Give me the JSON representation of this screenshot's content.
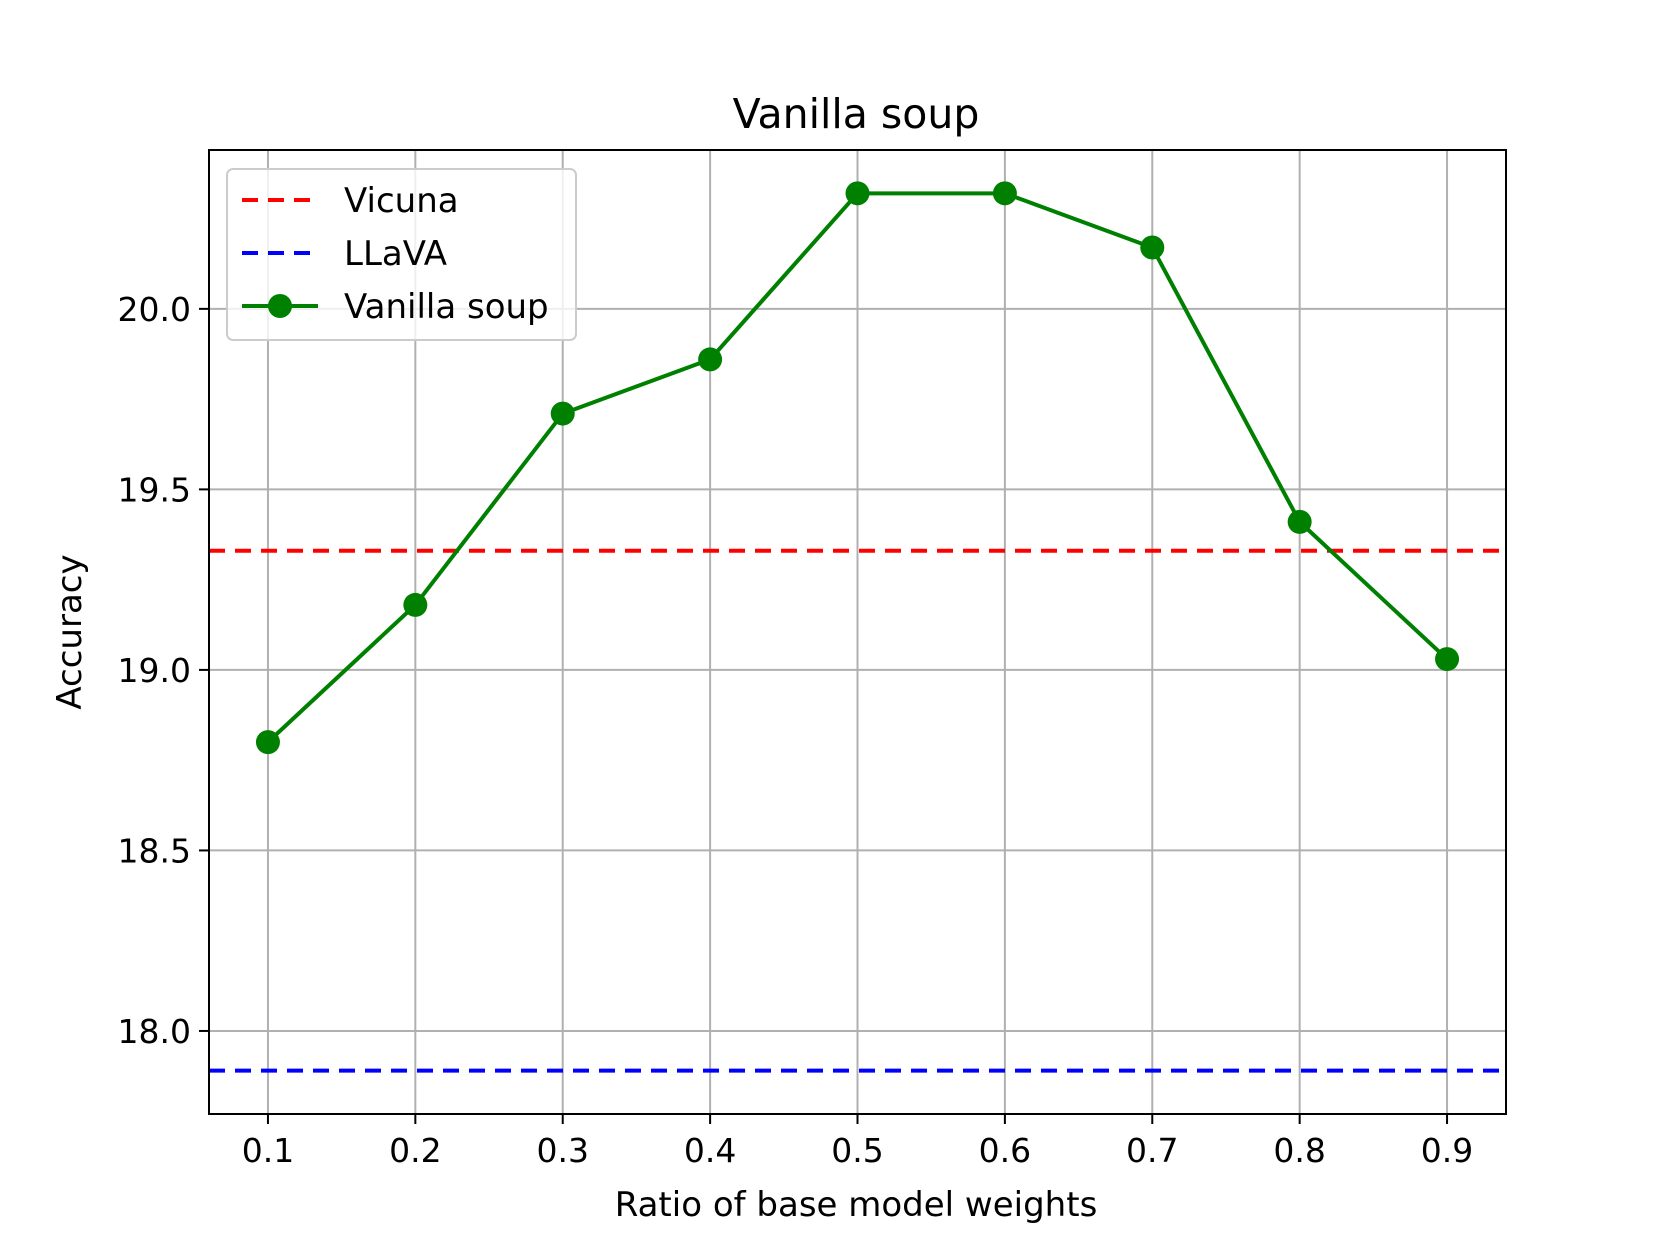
{
  "chart_data": {
    "type": "line",
    "title": "Vanilla soup",
    "xlabel": "Ratio of base model weights",
    "ylabel": "Accuracy",
    "x": [
      0.1,
      0.2,
      0.3,
      0.4,
      0.5,
      0.6,
      0.7,
      0.8,
      0.9
    ],
    "x_ticks": [
      "0.1",
      "0.2",
      "0.3",
      "0.4",
      "0.5",
      "0.6",
      "0.7",
      "0.8",
      "0.9"
    ],
    "y_ticks": [
      "18.0",
      "18.5",
      "19.0",
      "19.5",
      "20.0"
    ],
    "xlim": [
      0.06,
      0.94
    ],
    "ylim": [
      17.77,
      20.44
    ],
    "grid": true,
    "legend_position": "top-left",
    "series": [
      {
        "name": "Vanilla soup",
        "values": [
          18.8,
          19.18,
          19.71,
          19.86,
          20.32,
          20.32,
          20.17,
          19.41,
          19.03
        ],
        "color": "#008000",
        "style": "solid",
        "marker": "circle"
      }
    ],
    "reference_lines": [
      {
        "name": "Vicuna",
        "y": 19.33,
        "color": "#ff0000",
        "style": "dashed"
      },
      {
        "name": "LLaVA",
        "y": 17.89,
        "color": "#0000ff",
        "style": "dashed"
      }
    ]
  }
}
